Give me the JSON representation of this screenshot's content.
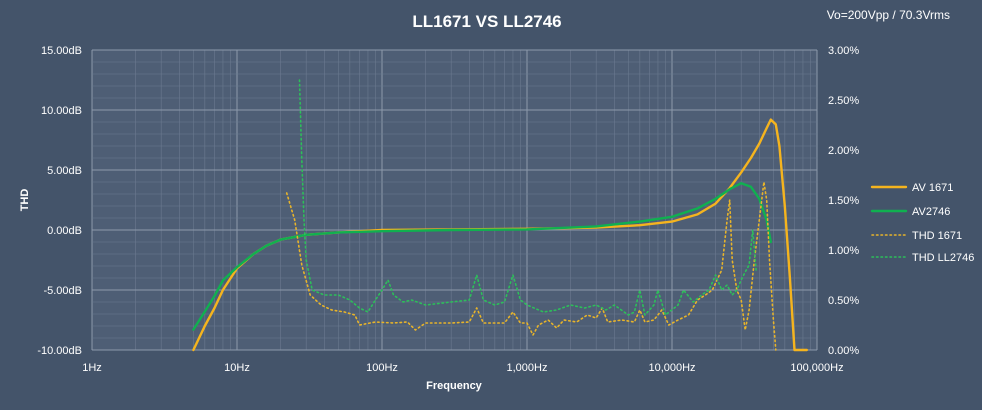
{
  "chart_data": {
    "type": "line",
    "title": "LL1671  VS  LL2746",
    "annotation": "Vo=200Vpp / 70.3Vrms",
    "xlabel": "Frequency",
    "ylabel": "THD",
    "x_scale": "log",
    "xlim": [
      1,
      100000
    ],
    "ylim": [
      -10,
      15
    ],
    "y2lim": [
      0,
      3
    ],
    "x_ticks": [
      "1Hz",
      "10Hz",
      "100Hz",
      "1,000Hz",
      "10,000Hz",
      "100,000Hz"
    ],
    "y_ticks": [
      "-10.00dB",
      "-5.00dB",
      "0.00dB",
      "5.00dB",
      "10.00dB",
      "15.00dB"
    ],
    "y2_ticks": [
      "0.00%",
      "0.50%",
      "1.00%",
      "1.50%",
      "2.00%",
      "2.50%",
      "3.00%"
    ],
    "grid": true,
    "legend_position": "right",
    "series": [
      {
        "name": "AV 1671",
        "axis": "left",
        "color": "#f5b41e",
        "style": "solid",
        "points": [
          [
            5,
            -10
          ],
          [
            6,
            -8
          ],
          [
            7,
            -6.5
          ],
          [
            8,
            -5
          ],
          [
            10,
            -3.2
          ],
          [
            13,
            -2
          ],
          [
            16,
            -1.3
          ],
          [
            20,
            -0.8
          ],
          [
            30,
            -0.4
          ],
          [
            50,
            -0.2
          ],
          [
            100,
            0
          ],
          [
            300,
            0.05
          ],
          [
            1000,
            0.1
          ],
          [
            3000,
            0.2
          ],
          [
            6000,
            0.4
          ],
          [
            10000,
            0.7
          ],
          [
            15000,
            1.3
          ],
          [
            20000,
            2.2
          ],
          [
            25000,
            3.5
          ],
          [
            30000,
            4.8
          ],
          [
            35000,
            6
          ],
          [
            40000,
            7.2
          ],
          [
            45000,
            8.5
          ],
          [
            48000,
            9.2
          ],
          [
            52000,
            8.8
          ],
          [
            55000,
            7
          ],
          [
            60000,
            2
          ],
          [
            65000,
            -4
          ],
          [
            70000,
            -10
          ],
          [
            85000,
            -10
          ]
        ]
      },
      {
        "name": "AV2746",
        "axis": "left",
        "color": "#10b050",
        "style": "solid",
        "points": [
          [
            5,
            -8.3
          ],
          [
            6,
            -6.8
          ],
          [
            7,
            -5.5
          ],
          [
            8,
            -4.2
          ],
          [
            10,
            -3.1
          ],
          [
            13,
            -2
          ],
          [
            16,
            -1.3
          ],
          [
            20,
            -0.8
          ],
          [
            30,
            -0.4
          ],
          [
            50,
            -0.2
          ],
          [
            100,
            -0.1
          ],
          [
            300,
            0
          ],
          [
            1000,
            0.05
          ],
          [
            3000,
            0.3
          ],
          [
            6000,
            0.7
          ],
          [
            10000,
            1.1
          ],
          [
            15000,
            1.8
          ],
          [
            20000,
            2.6
          ],
          [
            25000,
            3.4
          ],
          [
            30000,
            3.9
          ],
          [
            35000,
            3.6
          ],
          [
            40000,
            2.6
          ],
          [
            45000,
            0.8
          ],
          [
            48000,
            -1
          ]
        ]
      },
      {
        "name": "THD 1671",
        "axis": "right",
        "color": "#e8b42a",
        "style": "dotted",
        "points": [
          [
            22,
            1.57
          ],
          [
            25,
            1.3
          ],
          [
            28,
            0.85
          ],
          [
            32,
            0.55
          ],
          [
            38,
            0.45
          ],
          [
            45,
            0.4
          ],
          [
            55,
            0.38
          ],
          [
            65,
            0.35
          ],
          [
            70,
            0.25
          ],
          [
            90,
            0.28
          ],
          [
            120,
            0.27
          ],
          [
            150,
            0.28
          ],
          [
            170,
            0.2
          ],
          [
            200,
            0.27
          ],
          [
            300,
            0.27
          ],
          [
            400,
            0.28
          ],
          [
            450,
            0.42
          ],
          [
            500,
            0.27
          ],
          [
            700,
            0.27
          ],
          [
            800,
            0.38
          ],
          [
            900,
            0.27
          ],
          [
            1000,
            0.27
          ],
          [
            1100,
            0.15
          ],
          [
            1200,
            0.25
          ],
          [
            1400,
            0.3
          ],
          [
            1600,
            0.22
          ],
          [
            1800,
            0.3
          ],
          [
            2200,
            0.28
          ],
          [
            2600,
            0.35
          ],
          [
            3000,
            0.32
          ],
          [
            3300,
            0.42
          ],
          [
            3600,
            0.28
          ],
          [
            4500,
            0.3
          ],
          [
            5500,
            0.28
          ],
          [
            6000,
            0.4
          ],
          [
            6500,
            0.28
          ],
          [
            7500,
            0.3
          ],
          [
            8500,
            0.4
          ],
          [
            9500,
            0.25
          ],
          [
            11000,
            0.3
          ],
          [
            13000,
            0.35
          ],
          [
            15000,
            0.5
          ],
          [
            17000,
            0.55
          ],
          [
            19000,
            0.6
          ],
          [
            22000,
            0.8
          ],
          [
            24000,
            1.3
          ],
          [
            25000,
            1.5
          ],
          [
            26000,
            0.9
          ],
          [
            28000,
            0.6
          ],
          [
            30000,
            0.5
          ],
          [
            32000,
            0.2
          ],
          [
            34000,
            0.4
          ],
          [
            37000,
            0.9
          ],
          [
            40000,
            1.3
          ],
          [
            43000,
            1.68
          ],
          [
            45000,
            1.5
          ],
          [
            47000,
            0.9
          ],
          [
            50000,
            0.3
          ],
          [
            52000,
            0
          ]
        ]
      },
      {
        "name": "THD LL2746",
        "axis": "right",
        "color": "#2dbf5a",
        "style": "dotted",
        "points": [
          [
            27,
            2.7
          ],
          [
            28,
            1.9
          ],
          [
            29,
            1.3
          ],
          [
            30,
            0.9
          ],
          [
            33,
            0.6
          ],
          [
            40,
            0.55
          ],
          [
            50,
            0.55
          ],
          [
            60,
            0.5
          ],
          [
            70,
            0.42
          ],
          [
            80,
            0.38
          ],
          [
            90,
            0.5
          ],
          [
            100,
            0.6
          ],
          [
            110,
            0.7
          ],
          [
            120,
            0.55
          ],
          [
            140,
            0.48
          ],
          [
            160,
            0.5
          ],
          [
            200,
            0.45
          ],
          [
            300,
            0.48
          ],
          [
            400,
            0.5
          ],
          [
            450,
            0.75
          ],
          [
            500,
            0.5
          ],
          [
            600,
            0.45
          ],
          [
            700,
            0.48
          ],
          [
            800,
            0.75
          ],
          [
            900,
            0.5
          ],
          [
            1000,
            0.45
          ],
          [
            1300,
            0.38
          ],
          [
            1600,
            0.4
          ],
          [
            2000,
            0.45
          ],
          [
            2500,
            0.42
          ],
          [
            3000,
            0.45
          ],
          [
            3500,
            0.4
          ],
          [
            4000,
            0.45
          ],
          [
            5000,
            0.35
          ],
          [
            5500,
            0.38
          ],
          [
            6000,
            0.6
          ],
          [
            6500,
            0.35
          ],
          [
            7500,
            0.45
          ],
          [
            8000,
            0.6
          ],
          [
            9000,
            0.35
          ],
          [
            11000,
            0.45
          ],
          [
            12000,
            0.6
          ],
          [
            14000,
            0.48
          ],
          [
            16000,
            0.55
          ],
          [
            18000,
            0.6
          ],
          [
            20000,
            0.75
          ],
          [
            22000,
            0.6
          ],
          [
            24000,
            0.65
          ],
          [
            26000,
            0.55
          ],
          [
            28000,
            0.6
          ],
          [
            30000,
            0.7
          ],
          [
            32000,
            0.78
          ],
          [
            34000,
            0.85
          ],
          [
            36000,
            1.2
          ],
          [
            38000,
            0.8
          ]
        ]
      }
    ]
  }
}
